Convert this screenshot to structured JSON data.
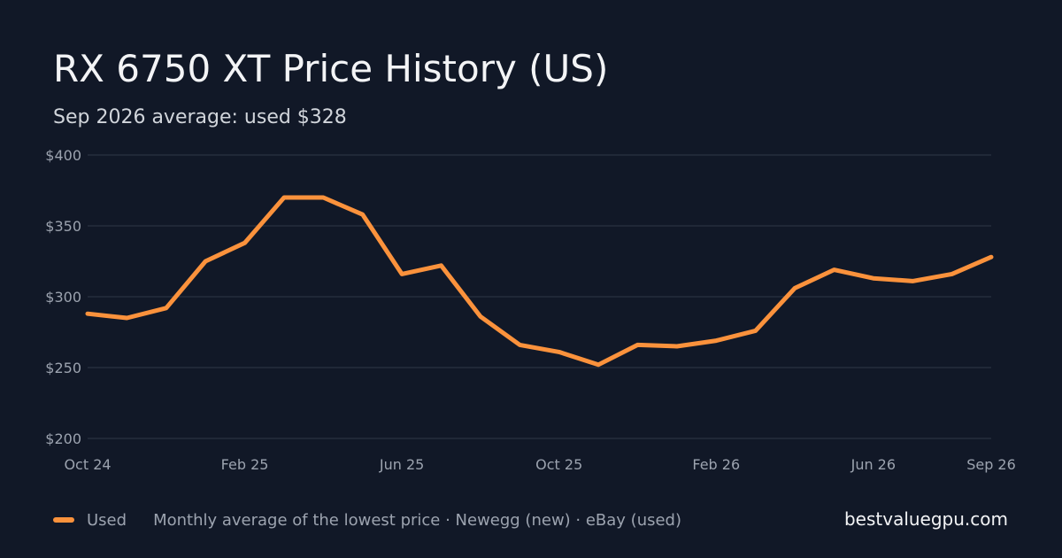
{
  "chart_data": {
    "type": "line",
    "title": "RX 6750 XT Price History (US)",
    "subtitle": "Sep 2026 average: used $328",
    "x": [
      "Oct 24",
      "Nov 24",
      "Dec 24",
      "Jan 25",
      "Feb 25",
      "Mar 25",
      "Apr 25",
      "May 25",
      "Jun 25",
      "Jul 25",
      "Aug 25",
      "Sep 25",
      "Oct 25",
      "Nov 25",
      "Dec 25",
      "Jan 26",
      "Feb 26",
      "Mar 26",
      "Apr 26",
      "May 26",
      "Jun 26",
      "Jul 26",
      "Aug 26",
      "Sep 26"
    ],
    "x_tick_labels": [
      "Oct 24",
      "Feb 25",
      "Jun 25",
      "Oct 25",
      "Feb 26",
      "Jun 26",
      "Sep 26"
    ],
    "x_tick_indices": [
      0,
      4,
      8,
      12,
      16,
      20,
      23
    ],
    "ylim": [
      200,
      400
    ],
    "y_ticks": [
      200,
      250,
      300,
      350,
      400
    ],
    "y_tick_labels": [
      "$200",
      "$250",
      "$300",
      "$350",
      "$400"
    ],
    "grid": true,
    "legend_position": "bottom-left",
    "series": [
      {
        "name": "Used",
        "color": "#fb923c",
        "values": [
          288,
          285,
          292,
          325,
          338,
          370,
          370,
          358,
          316,
          322,
          286,
          266,
          261,
          252,
          266,
          265,
          269,
          276,
          306,
          319,
          313,
          311,
          316,
          328
        ]
      }
    ]
  },
  "legend": {
    "note": "Monthly average of the lowest price · Newegg (new) · eBay (used)"
  },
  "brand": "bestvaluegpu.com",
  "colors": {
    "background": "#111827",
    "grid": "#2a3241",
    "tick_text": "#9ca3af"
  }
}
